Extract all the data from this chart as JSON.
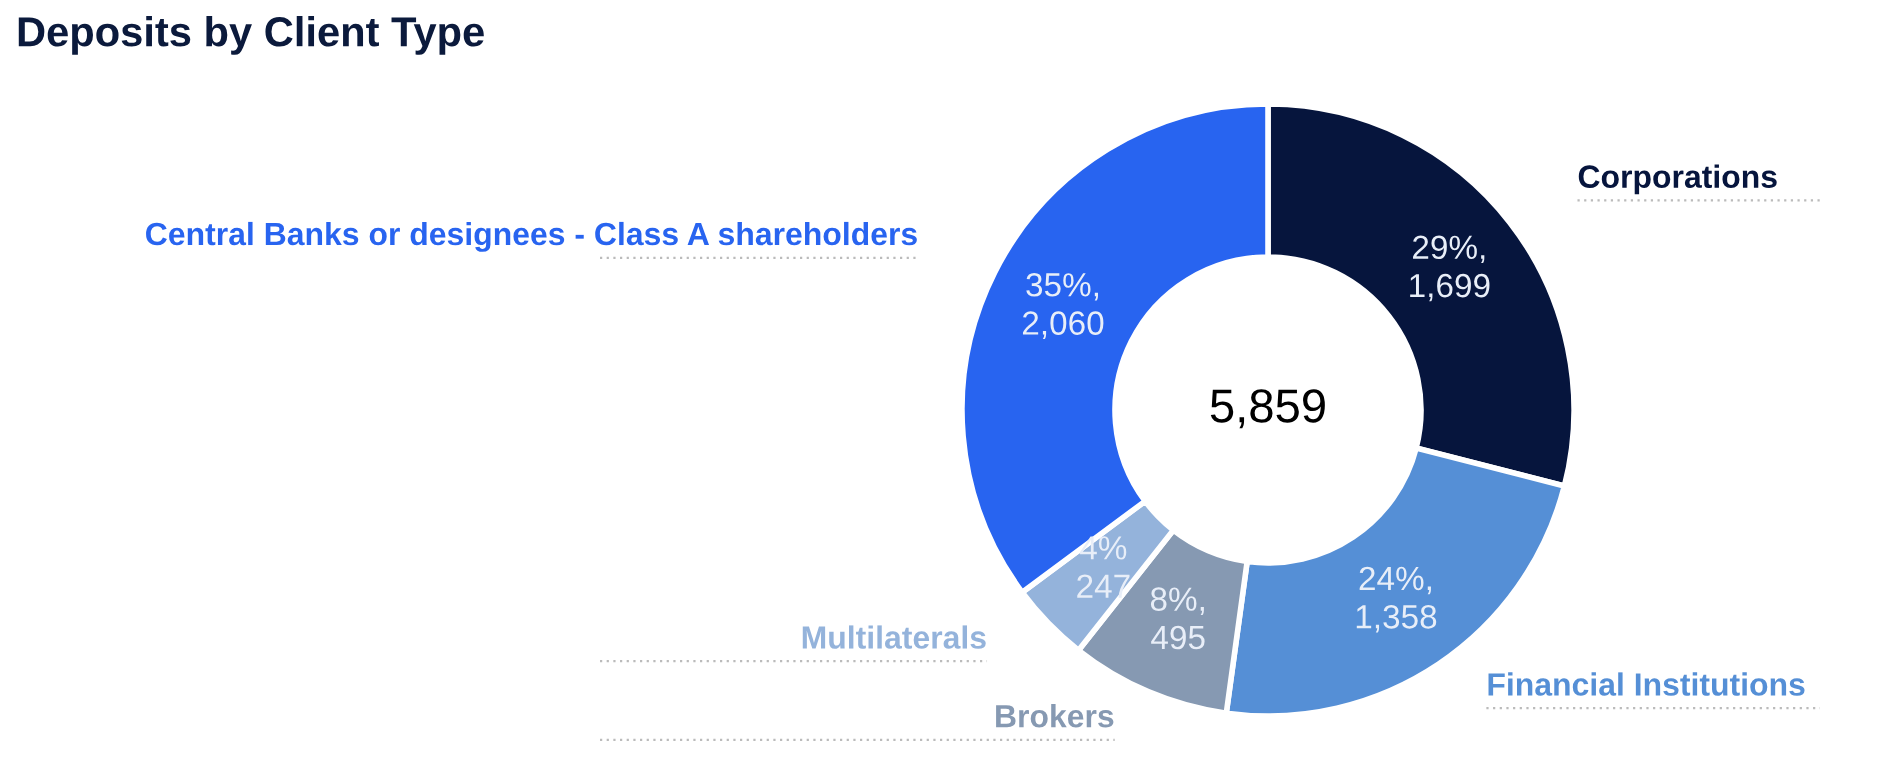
{
  "chart_data": {
    "type": "donut",
    "title": "Deposits by Client Type",
    "categories": [
      "Corporations",
      "Financial Institutions",
      "Brokers",
      "Multilaterals",
      "Central Banks or designees - Class A shareholders"
    ],
    "values": [
      1699,
      1358,
      495,
      247,
      2060
    ],
    "colors": [
      "#06153d",
      "#558fd6",
      "#8699b2",
      "#94b3db",
      "#2864f0"
    ],
    "value_labels": [
      "29%,\n1,699",
      "24%,\n1,358",
      "8%,\n495",
      "4%\n247",
      "35%,\n2,060"
    ],
    "annotations": [
      "5,859"
    ]
  }
}
